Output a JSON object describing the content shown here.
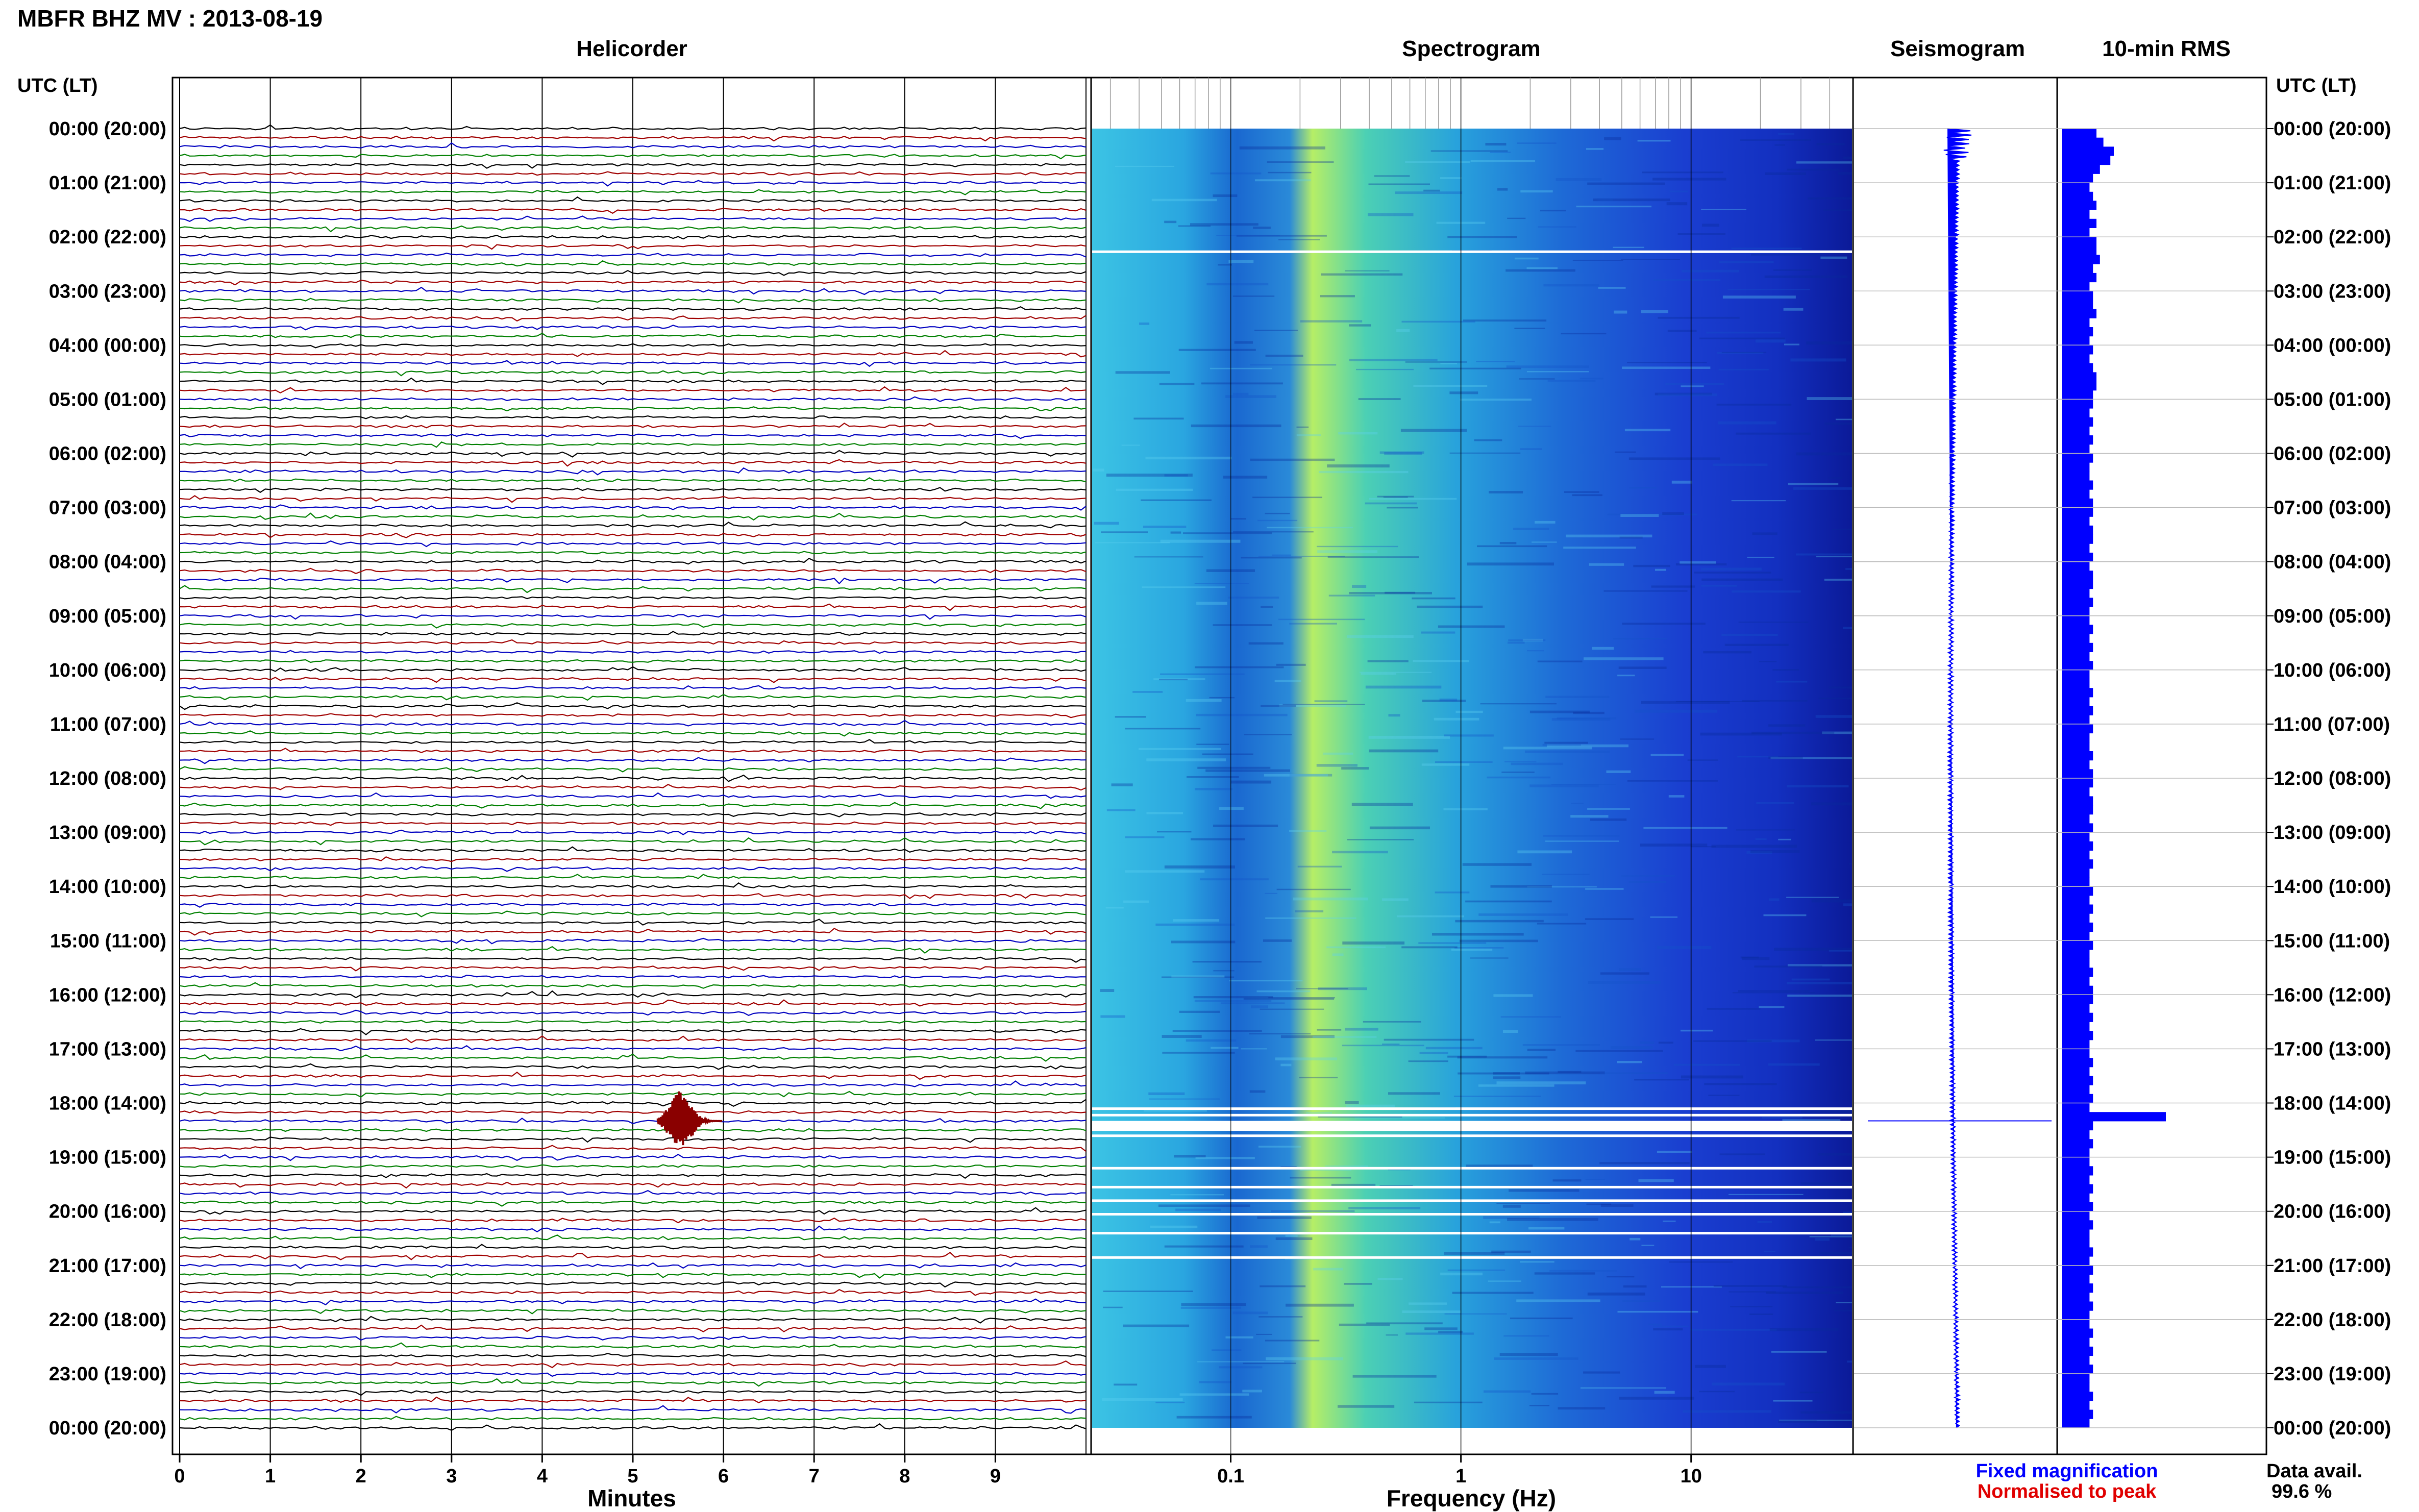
{
  "title": "MBFR BHZ MV : 2013-08-19",
  "panel_titles": {
    "helicorder": "Helicorder",
    "spectrogram": "Spectrogram",
    "seismogram": "Seismogram",
    "rms": "10-min RMS"
  },
  "time_axis_label": "UTC (LT)",
  "time_labels": [
    "00:00 (20:00)",
    "01:00 (21:00)",
    "02:00 (22:00)",
    "03:00 (23:00)",
    "04:00 (00:00)",
    "05:00 (01:00)",
    "06:00 (02:00)",
    "07:00 (03:00)",
    "08:00 (04:00)",
    "09:00 (05:00)",
    "10:00 (06:00)",
    "11:00 (07:00)",
    "12:00 (08:00)",
    "13:00 (09:00)",
    "14:00 (10:00)",
    "15:00 (11:00)",
    "16:00 (12:00)",
    "17:00 (13:00)",
    "18:00 (14:00)",
    "19:00 (15:00)",
    "20:00 (16:00)",
    "21:00 (17:00)",
    "22:00 (18:00)",
    "23:00 (19:00)",
    "00:00 (20:00)"
  ],
  "helicorder_axis": {
    "label": "Minutes",
    "ticks": [
      "0",
      "1",
      "2",
      "3",
      "4",
      "5",
      "6",
      "7",
      "8",
      "9"
    ]
  },
  "spectrogram_axis": {
    "label": "Frequency (Hz)",
    "ticks": [
      "0.1",
      "1",
      "10"
    ],
    "scale": "log",
    "range": [
      0.025,
      50
    ]
  },
  "legend": {
    "fixed": "Fixed magnification",
    "normalised": "Normalised to peak"
  },
  "data_availability": {
    "label": "Data avail.",
    "value": "99.6 %"
  },
  "colors": {
    "trace_black": "#000000",
    "trace_red": "#a00000",
    "trace_blue": "#0000c0",
    "trace_green": "#008000",
    "seismogram": "#0000ff",
    "rms_bar": "#0000ff",
    "spec_low": "#40c8e8",
    "spec_mid": "#b8f060",
    "spec_high": "#0a1aa0"
  },
  "chart_data": {
    "type": "bar",
    "title": "10-min RMS",
    "orientation": "horizontal",
    "time_range_hours": [
      0,
      24
    ],
    "bin_minutes": 10,
    "notable_event": {
      "time_utc": "18:20",
      "helicorder_minute": 5.5,
      "rms_relative": 3.0
    },
    "values": [
      1.0,
      1.2,
      1.5,
      1.4,
      1.1,
      0.9,
      0.8,
      0.9,
      1.0,
      0.8,
      1.0,
      0.8,
      1.0,
      1.0,
      1.1,
      0.9,
      1.0,
      0.8,
      0.9,
      0.9,
      1.0,
      0.8,
      0.9,
      0.8,
      0.9,
      0.8,
      0.9,
      1.0,
      1.0,
      0.9,
      0.9,
      0.8,
      0.9,
      0.8,
      0.9,
      0.8,
      0.9,
      0.8,
      0.8,
      0.9,
      0.8,
      0.9,
      0.9,
      0.8,
      0.9,
      0.9,
      0.8,
      0.9,
      0.8,
      0.9,
      0.9,
      0.8,
      0.9,
      0.8,
      0.8,
      0.9,
      0.8,
      0.9,
      0.8,
      0.9,
      0.8,
      0.8,
      0.9,
      0.8,
      0.9,
      0.8,
      0.9,
      0.8,
      0.8,
      0.9,
      0.8,
      0.9,
      0.9,
      0.8,
      0.9,
      0.9,
      0.8,
      0.9,
      0.8,
      0.9,
      0.8,
      0.9,
      0.8,
      0.8,
      0.9,
      0.8,
      0.9,
      0.8,
      0.9,
      0.8,
      0.9,
      0.8,
      0.8,
      0.9,
      0.8,
      0.9,
      0.9,
      0.8,
      0.9,
      0.8,
      0.9,
      0.8,
      0.8,
      0.9,
      0.8,
      0.9,
      0.8,
      0.9,
      0.8,
      3.0,
      0.9,
      0.8,
      0.9,
      0.8,
      0.8,
      0.9,
      0.8,
      0.9,
      0.8,
      0.9,
      0.8,
      0.9,
      0.8,
      0.8,
      0.9,
      0.8,
      0.9,
      0.8,
      0.9,
      0.8,
      0.9,
      0.8,
      0.8,
      0.9,
      0.8,
      0.9,
      0.8,
      0.9,
      0.8,
      0.8,
      0.9,
      0.8,
      0.9,
      0.8
    ]
  }
}
